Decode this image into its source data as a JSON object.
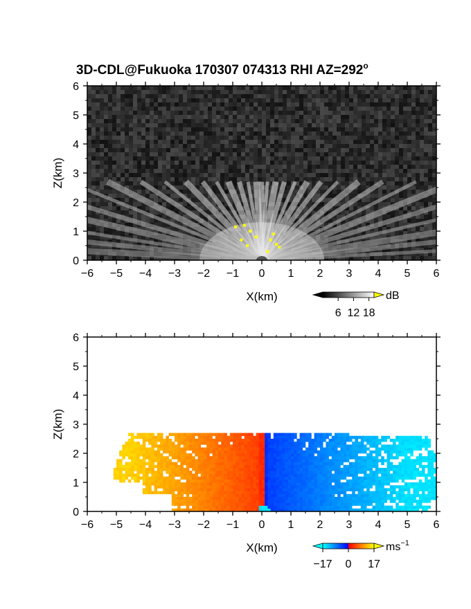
{
  "figure": {
    "title_main": "3D-CDL@Fukuoka 170307 074313 RHI AZ=292",
    "title_sup": "o"
  },
  "chart_data": [
    {
      "type": "heatmap",
      "name": "reflectivity-panel",
      "xlabel": "X(km)",
      "ylabel": "Z(km)",
      "xlim": [
        -6,
        6
      ],
      "ylim": [
        0,
        6
      ],
      "xticks": [
        -6,
        -5,
        -4,
        -3,
        -2,
        -1,
        0,
        1,
        2,
        3,
        4,
        5,
        6
      ],
      "yticks": [
        0,
        1,
        2,
        3,
        4,
        5,
        6
      ],
      "colorbar": {
        "unit": "dB",
        "ticks": [
          6,
          12,
          18
        ],
        "range": [
          0,
          20
        ],
        "colors": [
          "#000000",
          "#ffffff"
        ],
        "over_color": "#ffff00"
      },
      "field": {
        "background_noise": "gray speckle over full domain",
        "echo_top_km": 2.7,
        "elevation_angles_deg": [
          3,
          6,
          9,
          13,
          17,
          22,
          27,
          33,
          39,
          46,
          53,
          60,
          67,
          74,
          80,
          86,
          90,
          94,
          100,
          106,
          113,
          120,
          127,
          134,
          141,
          147,
          153,
          158,
          163,
          167,
          171,
          174,
          177
        ],
        "saturated_points": [
          [
            -0.6,
            1.2
          ],
          [
            -0.4,
            1.0
          ],
          [
            -0.2,
            0.8
          ],
          [
            0.3,
            0.7
          ],
          [
            0.5,
            0.55
          ],
          [
            0.6,
            0.45
          ],
          [
            -0.5,
            0.5
          ],
          [
            0.2,
            0.3
          ],
          [
            0.4,
            0.9
          ],
          [
            -0.7,
            0.7
          ],
          [
            -0.9,
            1.15
          ]
        ]
      }
    },
    {
      "type": "heatmap",
      "name": "doppler-velocity-panel",
      "xlabel": "X(km)",
      "ylabel": "Z(km)",
      "xlim": [
        -6,
        6
      ],
      "ylim": [
        0,
        6
      ],
      "xticks": [
        -6,
        -5,
        -4,
        -3,
        -2,
        -1,
        0,
        1,
        2,
        3,
        4,
        5,
        6
      ],
      "yticks": [
        0,
        1,
        2,
        3,
        4,
        5,
        6
      ],
      "colorbar": {
        "unit": "ms",
        "unit_sup": "−1",
        "tick_labels": [
          "−17",
          "0",
          "17"
        ],
        "range": [
          -17,
          17
        ],
        "colors": [
          "#00ffff",
          "#0080ff",
          "#0000ff",
          "#ff0000",
          "#ff8000",
          "#ffff00"
        ]
      },
      "field": {
        "echo_top_km": 2.7,
        "velocity_at_origin_ms": 0,
        "velocity_left_far_ms": 14,
        "velocity_right_far_ms": -15
      }
    }
  ]
}
